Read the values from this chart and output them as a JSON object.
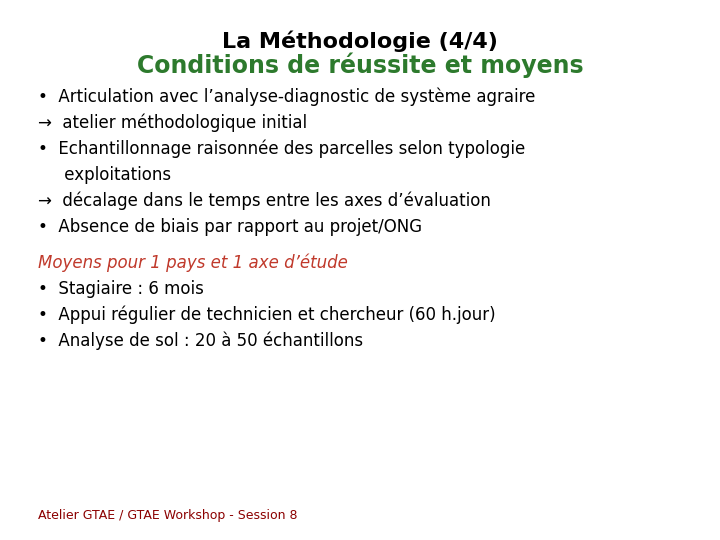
{
  "title_line1": "La Méthodologie (4/4)",
  "title_line2": "Conditions de réussite et moyens",
  "title_line1_color": "#000000",
  "title_line2_color": "#2d7a2d",
  "background_color": "#ffffff",
  "moyens_title": "Moyens pour 1 pays et 1 axe d’étude",
  "moyens_title_color": "#c0392b",
  "moyens_items": [
    "Stagiaire : 6 mois",
    "Appui régulier de technicien et chercheur (60 h.jour)",
    "Analyse de sol : 20 à 50 échantillons"
  ],
  "footer": "Atelier GTAE / GTAE Workshop - Session 8",
  "footer_color": "#8b0000",
  "text_color": "#000000",
  "font_size_title1": 16,
  "font_size_title2": 17,
  "font_size_body": 12,
  "font_size_footer": 9
}
